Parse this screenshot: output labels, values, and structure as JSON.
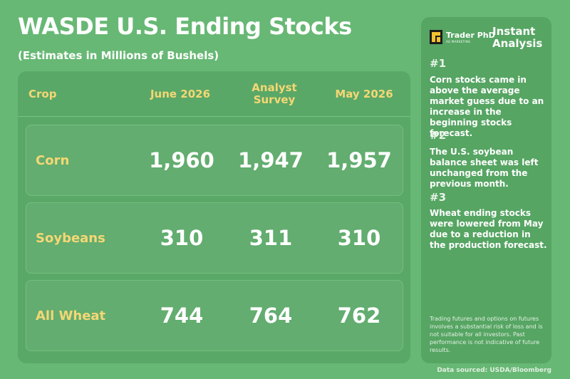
{
  "title": "WASDE U.S. Ending Stocks",
  "subtitle": "(Estimates in Millions of Bushels)",
  "table": {
    "headers": {
      "crop": "Crop",
      "june": "June 2026",
      "analyst": "Analyst Survey",
      "may": "May 2026"
    },
    "rows": [
      {
        "crop": "Corn",
        "june": "1,960",
        "analyst": "1,947",
        "may": "1,957"
      },
      {
        "crop": "Soybeans",
        "june": "310",
        "analyst": "311",
        "may": "310"
      },
      {
        "crop": "All Wheat",
        "june": "744",
        "analyst": "764",
        "may": "762"
      }
    ]
  },
  "side": {
    "logo_name": "Trader PhD",
    "logo_tag": "AG MARKETING",
    "heading": "Instant Analysis",
    "points": [
      {
        "num": "#1",
        "text": "Corn stocks came in above the average market guess due to an increase in the beginning stocks forecast."
      },
      {
        "num": "#2",
        "text": "The U.S. soybean balance sheet was left unchanged from the previous month."
      },
      {
        "num": "#3",
        "text": "Wheat ending stocks were lowered from May due to a reduction in the production forecast."
      }
    ],
    "disclaimer": "Trading futures and options on futures involves a substantial risk of loss and is not suitable for all investors. Past performance is not indicative of future results."
  },
  "source": "Data sourced: USDA/Bloomberg",
  "colors": {
    "background": "#67b874",
    "panel": "#5aa867",
    "accent_yellow": "#f5d775",
    "logo_yellow": "#f2c230"
  }
}
